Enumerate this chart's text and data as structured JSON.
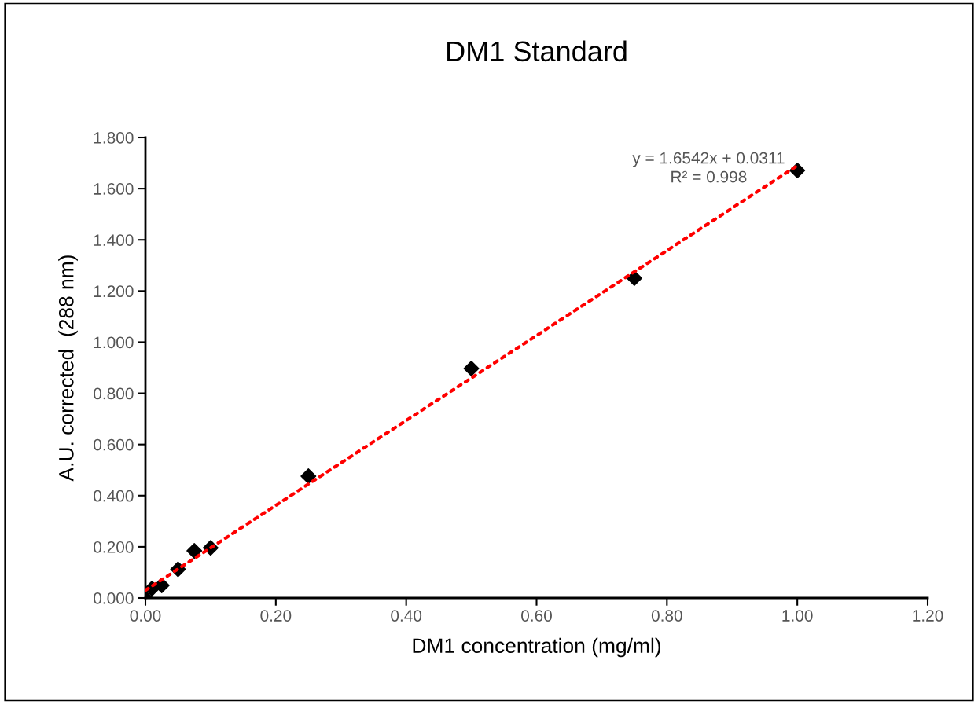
{
  "chart_data": {
    "type": "scatter",
    "title": "DM1 Standard",
    "xlabel": "DM1 concentration (mg/ml)",
    "ylabel": "A.U. corrected  (288 nm)",
    "x": [
      0,
      0.01,
      0.025,
      0.05,
      0.075,
      0.1,
      0.25,
      0.5,
      0.75,
      1.0
    ],
    "series": [
      {
        "color": "#000000",
        "marker": "diamond",
        "values": [
          0.0,
          0.037,
          0.049,
          0.112,
          0.184,
          0.196,
          0.476,
          0.897,
          1.25,
          1.671
        ]
      },
      {
        "type": "line",
        "color": "#ff0000",
        "line_style": "dotted",
        "marker": "none",
        "x": [
          0,
          1.0
        ],
        "values": [
          0.03,
          1.69
        ]
      }
    ],
    "annotations": [
      "y = 1.6542x + 0.0311\nR² = 0.998"
    ],
    "xlim": [
      0,
      1.2
    ],
    "ylim": [
      0,
      1.8
    ],
    "xticks": [
      {
        "value": 0,
        "label": "0.00"
      },
      {
        "value": 0.2,
        "label": "0.20"
      },
      {
        "value": 0.4,
        "label": "0.40"
      },
      {
        "value": 0.6,
        "label": "0.60"
      },
      {
        "value": 0.8,
        "label": "0.80"
      },
      {
        "value": 1.0,
        "label": "1.00"
      },
      {
        "value": 1.2,
        "label": "1.20"
      }
    ],
    "yticks": [
      {
        "value": 0,
        "label": "0.000"
      },
      {
        "value": 0.2,
        "label": "0.200"
      },
      {
        "value": 0.4,
        "label": "0.400"
      },
      {
        "value": 0.6,
        "label": "0.600"
      },
      {
        "value": 0.8,
        "label": "0.800"
      },
      {
        "value": 1.0,
        "label": "1.000"
      },
      {
        "value": 1.2,
        "label": "1.200"
      },
      {
        "value": 1.4,
        "label": "1.400"
      },
      {
        "value": 1.6,
        "label": "1.600"
      },
      {
        "value": 1.8,
        "label": "1.800"
      }
    ],
    "grid": false
  }
}
